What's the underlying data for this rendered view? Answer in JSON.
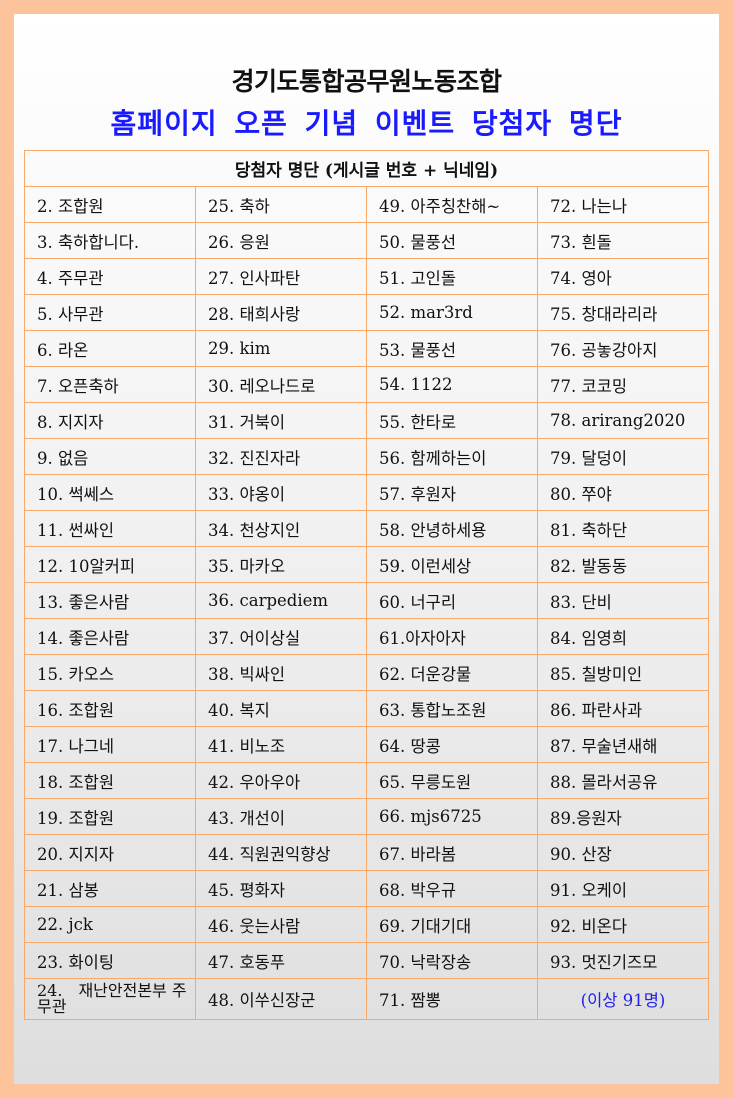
{
  "header": {
    "title": "경기도통합공무원노동조합",
    "subtitle": "홈페이지 오픈 기념 이벤트 당첨자 명단"
  },
  "table": {
    "caption": "당첨자 명단 (게시글 번호 + 닉네임)",
    "rows": [
      [
        "2. 조합원",
        "25. 축하",
        "49. 아주칭찬해~",
        "72. 나는나"
      ],
      [
        "3. 축하합니다.",
        "26. 응원",
        "50. 물풍선",
        "73. 흰돌"
      ],
      [
        "4. 주무관",
        "27. 인사파탄",
        "51. 고인돌",
        "74. 영아"
      ],
      [
        "5. 사무관",
        "28. 태희사랑",
        "52. mar3rd",
        "75. 창대라리라"
      ],
      [
        "6. 라온",
        "29. kim",
        "53. 물풍선",
        "76. 공놓강아지"
      ],
      [
        "7. 오픈축하",
        "30. 레오나드로",
        "54. 1122",
        "77. 코코밍"
      ],
      [
        "8. 지지자",
        "31. 거북이",
        "55. 한타로",
        "78. arirang2020"
      ],
      [
        "9. 없음",
        "32. 진진자라",
        "56. 함께하는이",
        "79. 달덩이"
      ],
      [
        "10. 썩쎄스",
        "33. 야옹이",
        "57. 후원자",
        "80. 쭈야"
      ],
      [
        "11. 썬싸인",
        "34. 천상지인",
        "58. 안녕하세용",
        "81. 축하단"
      ],
      [
        "12. 10알커피",
        "35. 마카오",
        "59. 이런세상",
        "82. 발동동"
      ],
      [
        "13. 좋은사람",
        "36. carpediem",
        "60. 너구리",
        "83. 단비"
      ],
      [
        "14. 좋은사람",
        "37. 어이상실",
        "61.아자아자",
        "84. 임영희"
      ],
      [
        "15. 카오스",
        "38. 빅싸인",
        "62. 더운강물",
        "85. 칠방미인"
      ],
      [
        "16. 조합원",
        "40. 복지",
        "63. 통합노조원",
        "86. 파란사과"
      ],
      [
        "17. 나그네",
        "41. 비노조",
        "64. 땅콩",
        "87. 무술년새해"
      ],
      [
        "18. 조합원",
        "42. 우아우아",
        "65. 무릉도원",
        "88. 몰라서공유"
      ],
      [
        "19. 조합원",
        "43. 개선이",
        "66. mjs6725",
        "89.응원자"
      ],
      [
        "20. 지지자",
        "44. 직원권익향상",
        "67. 바라봄",
        "90. 산장"
      ],
      [
        "21. 삼봉",
        "45. 평화자",
        "68. 박우규",
        "91. 오케이"
      ],
      [
        "22. jck",
        "46. 웃는사람",
        "69. 기대기대",
        "92. 비온다"
      ],
      [
        "23. 화이팅",
        "47. 호동푸",
        "70. 낙락장송",
        "93. 멋진기즈모"
      ],
      [
        "24.　재난안전본부 주무관",
        "48. 이쑤신장군",
        "71. 짬뽕",
        "(이상 91명)"
      ]
    ]
  },
  "colors": {
    "frame": "#fdc49c",
    "table_border": "#f9a96a",
    "subtitle": "#1a1aff",
    "total_note": "#2020ee"
  }
}
